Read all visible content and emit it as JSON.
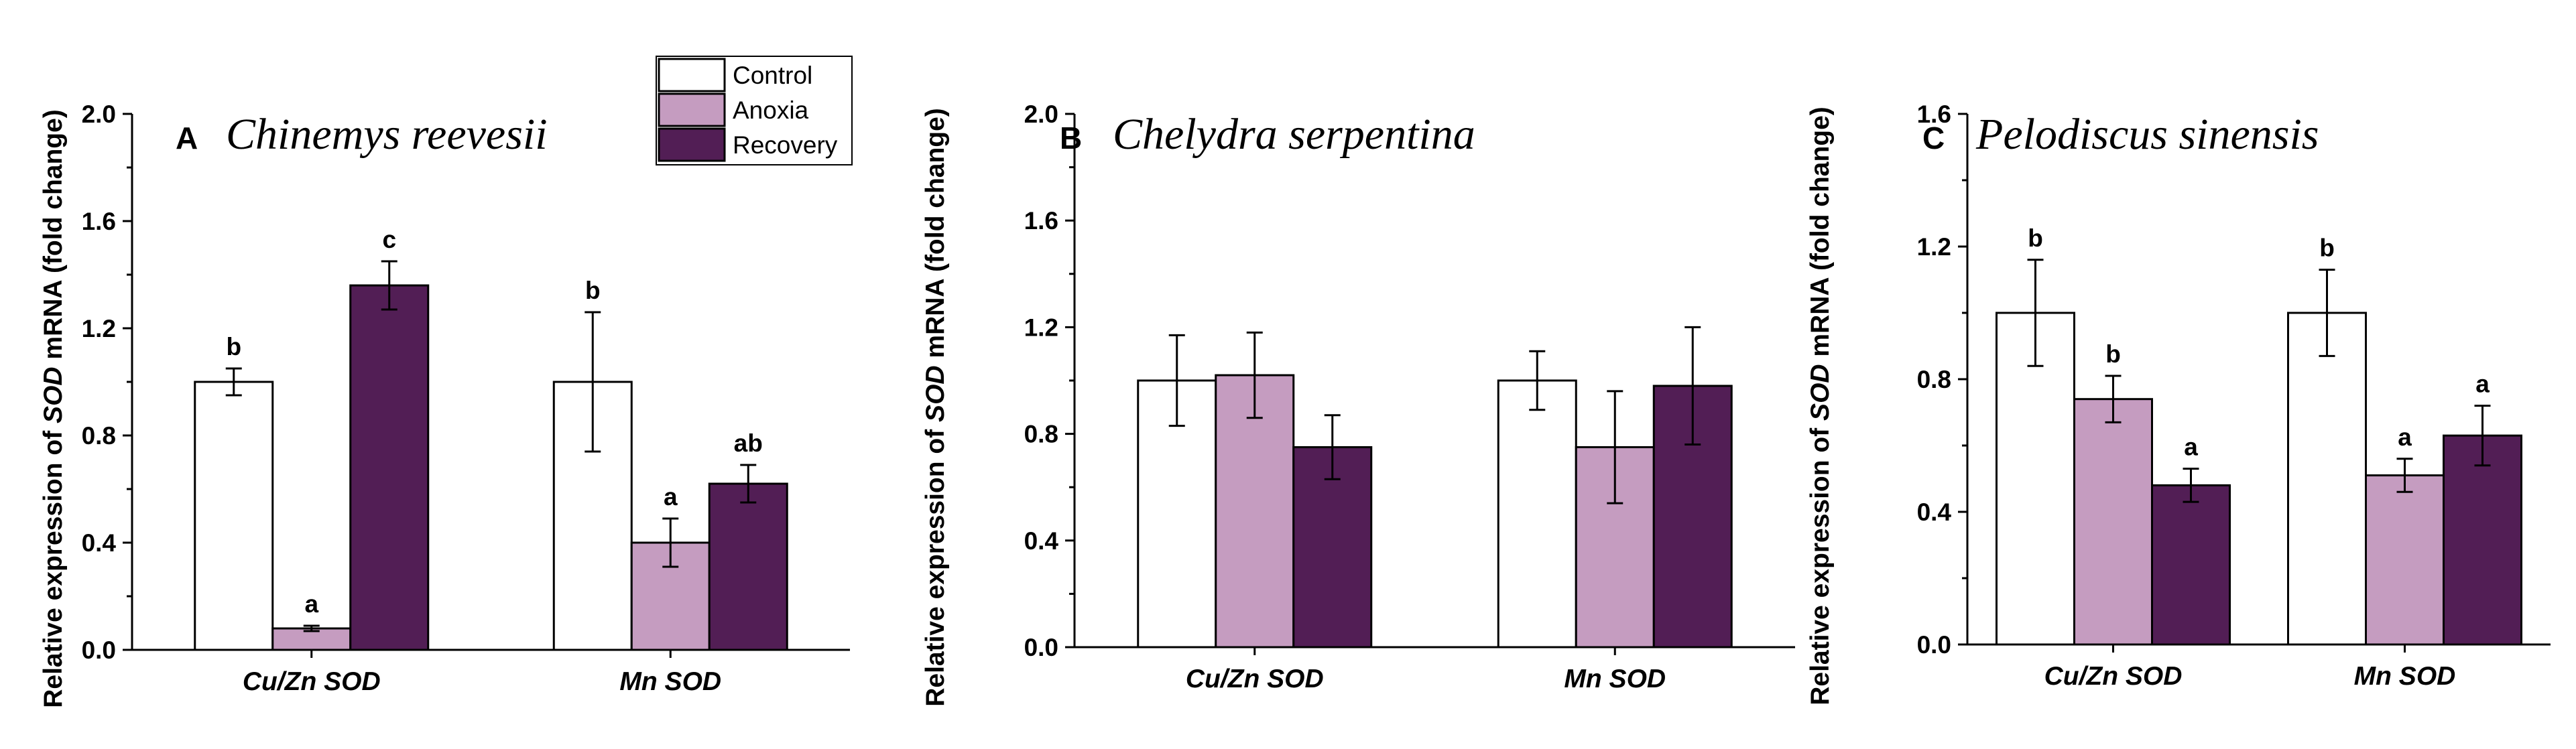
{
  "chart_data": [
    {
      "type": "bar",
      "panel_letter": "A",
      "title": "Chinemys reevesii",
      "ylabel": {
        "prefix": "Relative expression of ",
        "gene": "SOD",
        "suffix": " mRNA (fold change)"
      },
      "xlabel": "",
      "categories": [
        "Cu/Zn SOD",
        "Mn SOD"
      ],
      "ylim": [
        0,
        2.0
      ],
      "yticks": [
        "0.0",
        "0.4",
        "0.8",
        "1.2",
        "1.6",
        "2.0"
      ],
      "series": [
        {
          "name": "Control",
          "values": [
            1.0,
            1.0
          ],
          "errors": [
            0.05,
            0.26
          ],
          "labels": [
            "b",
            "b"
          ]
        },
        {
          "name": "Anoxia",
          "values": [
            0.08,
            0.4
          ],
          "errors": [
            0.01,
            0.09
          ],
          "labels": [
            "a",
            "a"
          ]
        },
        {
          "name": "Recovery",
          "values": [
            1.36,
            0.62
          ],
          "errors": [
            0.09,
            0.07
          ],
          "labels": [
            "c",
            "ab"
          ]
        }
      ]
    },
    {
      "type": "bar",
      "panel_letter": "B",
      "title": "Chelydra serpentina",
      "ylabel": {
        "prefix": "Relative expression of ",
        "gene": "SOD",
        "suffix": " mRNA (fold change)"
      },
      "xlabel": "",
      "categories": [
        "Cu/Zn SOD",
        "Mn SOD"
      ],
      "ylim": [
        0,
        2.0
      ],
      "yticks": [
        "0.0",
        "0.4",
        "0.8",
        "1.2",
        "1.6",
        "2.0"
      ],
      "series": [
        {
          "name": "Control",
          "values": [
            1.0,
            1.0
          ],
          "errors": [
            0.17,
            0.11
          ],
          "labels": [
            "",
            ""
          ]
        },
        {
          "name": "Anoxia",
          "values": [
            1.02,
            0.75
          ],
          "errors": [
            0.16,
            0.21
          ],
          "labels": [
            "",
            ""
          ]
        },
        {
          "name": "Recovery",
          "values": [
            0.75,
            0.98
          ],
          "errors": [
            0.12,
            0.22
          ],
          "labels": [
            "",
            ""
          ]
        }
      ]
    },
    {
      "type": "bar",
      "panel_letter": "C",
      "title": "Pelodiscus sinensis",
      "ylabel": {
        "prefix": "Relative expression of ",
        "gene": "SOD",
        "suffix": " mRNA (fold change)"
      },
      "xlabel": "",
      "categories": [
        "Cu/Zn SOD",
        "Mn SOD"
      ],
      "ylim": [
        0,
        1.6
      ],
      "yticks": [
        "0.0",
        "0.4",
        "0.8",
        "1.2",
        "1.6"
      ],
      "series": [
        {
          "name": "Control",
          "values": [
            1.0,
            1.0
          ],
          "errors": [
            0.16,
            0.13
          ],
          "labels": [
            "b",
            "b"
          ]
        },
        {
          "name": "Anoxia",
          "values": [
            0.74,
            0.51
          ],
          "errors": [
            0.07,
            0.05
          ],
          "labels": [
            "b",
            "a"
          ]
        },
        {
          "name": "Recovery",
          "values": [
            0.48,
            0.63
          ],
          "errors": [
            0.05,
            0.09
          ],
          "labels": [
            "a",
            "a"
          ]
        }
      ]
    }
  ],
  "legend": {
    "entries": [
      "Control",
      "Anoxia",
      "Recovery"
    ],
    "placement": "top-right of panel A"
  },
  "colors": {
    "Control": "#ffffff",
    "Anoxia": "#c59cc0",
    "Recovery": "#521e55",
    "stroke": "#000000"
  }
}
